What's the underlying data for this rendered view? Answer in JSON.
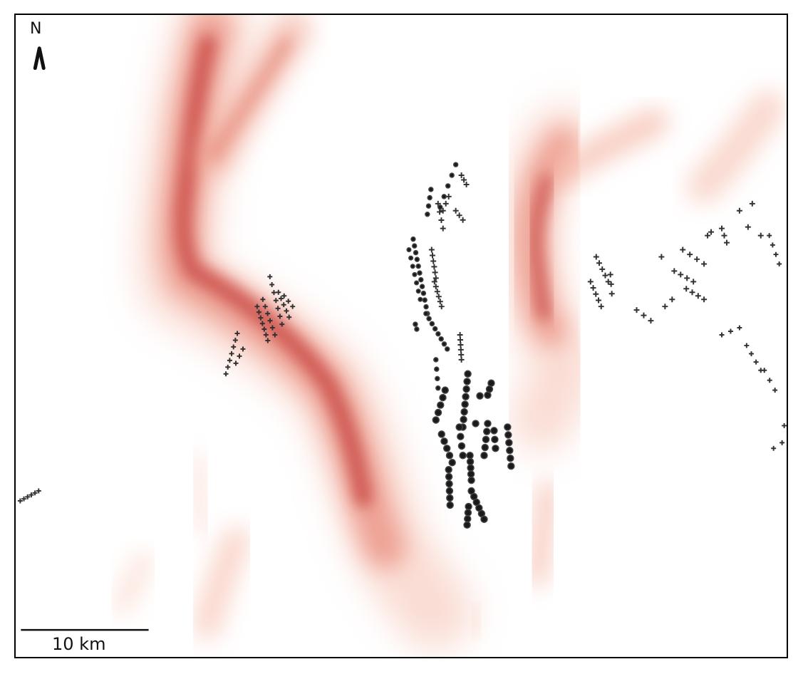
{
  "map": {
    "north_label": "N",
    "scale_label": "10 km",
    "heat_color_strong": "#c43b3b",
    "heat_color_light": "#f7b4a0",
    "marker_color": "#1a1a1a"
  }
}
